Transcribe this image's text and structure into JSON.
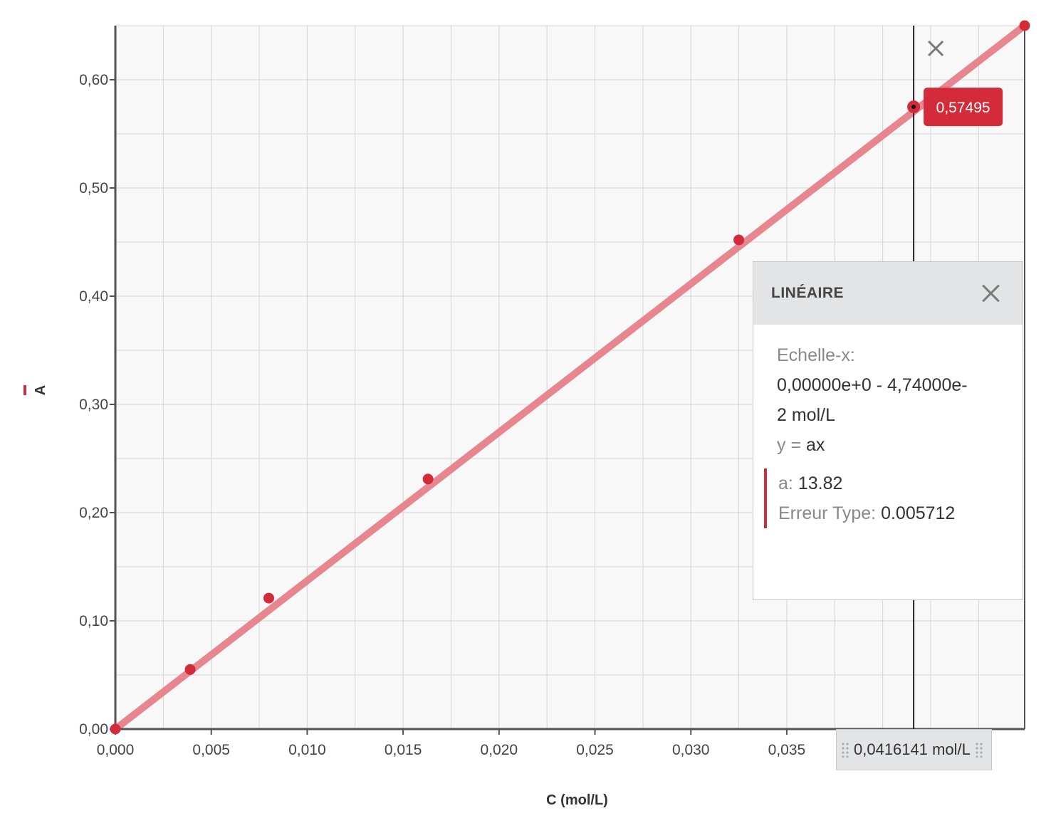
{
  "chart_data": {
    "type": "scatter",
    "xlabel": "C (mol/L)",
    "ylabel": "A",
    "xlim": [
      0,
      0.0474
    ],
    "ylim": [
      0,
      0.65
    ],
    "x_ticks": [
      "0,000",
      "0,005",
      "0,010",
      "0,015",
      "0,020",
      "0,025",
      "0,030",
      "0,035"
    ],
    "y_ticks": [
      "0,00",
      "0,10",
      "0,20",
      "0,30",
      "0,40",
      "0,50",
      "0,60"
    ],
    "grid": true,
    "series": [
      {
        "points": [
          {
            "x": 0.0,
            "y": 0.0
          },
          {
            "x": 0.0039,
            "y": 0.055
          },
          {
            "x": 0.008,
            "y": 0.121
          },
          {
            "x": 0.0163,
            "y": 0.231
          },
          {
            "x": 0.0325,
            "y": 0.452
          },
          {
            "x": 0.0474,
            "y": 0.65
          }
        ]
      }
    ],
    "fit": {
      "type": "linear",
      "slope": 13.82
    },
    "cursor": {
      "x": 0.0416141,
      "y": 0.57495,
      "y_label": "0,57495",
      "x_label": "0,0416141 mol/L"
    },
    "colors": {
      "points": "#d42b3a",
      "fit_line": "#e8868f",
      "grid": "#d4d4d4",
      "plot_bg": "#f8f8f8",
      "axis": "#555555"
    }
  },
  "fit_panel": {
    "title": "LINÉAIRE",
    "scale_label": "Echelle-x:",
    "scale_value_1": "0,00000e+0 - 4,74000e-",
    "scale_value_2": "2 mol/L",
    "eq_prefix": "y =",
    "eq_value": "ax",
    "param_a_label": "a:",
    "param_a_value": "13.82",
    "stderr_label": "Erreur Type:",
    "stderr_value": "0.005712"
  },
  "readout": {
    "value": "0,0416141 mol/L"
  },
  "icons": {
    "close_cursor": "close-icon",
    "close_panel": "close-icon",
    "drag_handle": "grip-icon"
  }
}
